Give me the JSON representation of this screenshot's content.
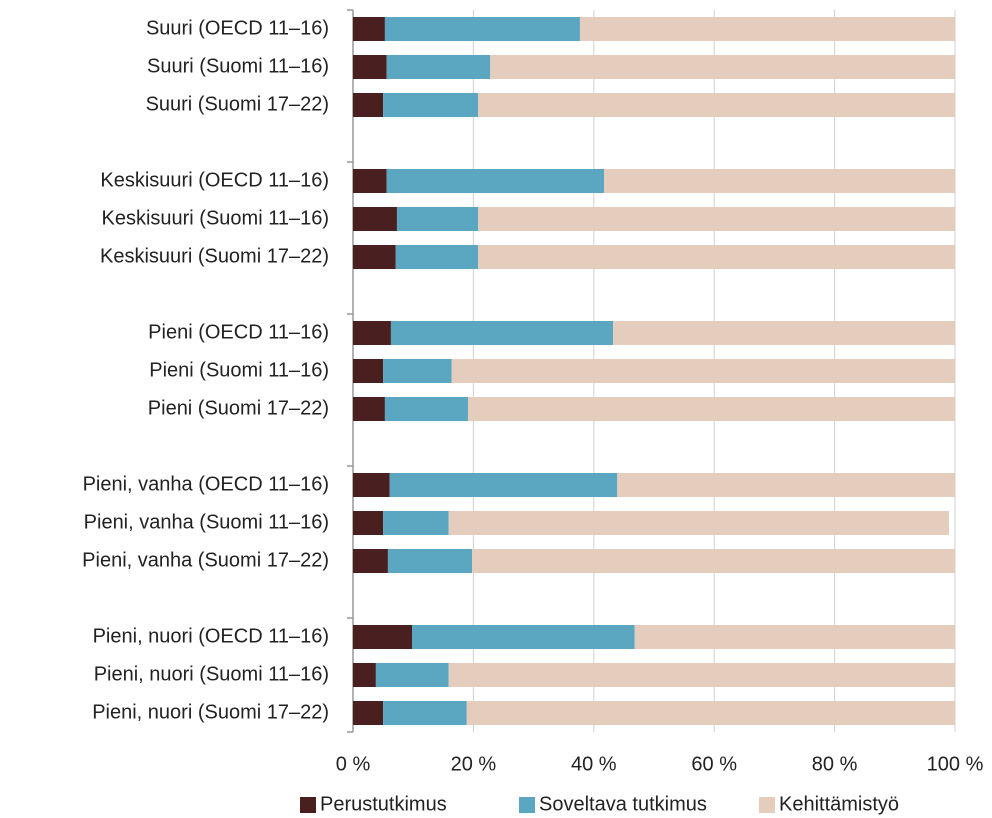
{
  "chart_data": {
    "type": "stacked-bar-horizontal",
    "categories": [
      "Suuri (OECD 11–16)",
      "Suuri (Suomi 11–16)",
      "Suuri (Suomi 17–22)",
      null,
      "Keskisuuri (OECD 11–16)",
      "Keskisuuri (Suomi 11–16)",
      "Keskisuuri (Suomi 17–22)",
      null,
      "Pieni (OECD 11–16)",
      "Pieni (Suomi 11–16)",
      "Pieni (Suomi 17–22)",
      null,
      "Pieni, vanha (OECD 11–16)",
      "Pieni, vanha (Suomi 11–16)",
      "Pieni, vanha (Suomi 17–22)",
      null,
      "Pieni, nuori (OECD 11–16)",
      "Pieni, nuori (Suomi 11–16)",
      "Pieni, nuori (Suomi 17–22)"
    ],
    "series": [
      {
        "name": "Perustutkimus",
        "color": "#4a1f1f",
        "values": [
          5.3,
          5.6,
          5.0,
          null,
          5.6,
          7.3,
          7.1,
          null,
          6.3,
          5.0,
          5.3,
          null,
          6.1,
          5.0,
          5.8,
          null,
          9.8,
          3.8,
          5.0
        ]
      },
      {
        "name": "Soveltava tutkimus",
        "color": "#5ba7c2",
        "values": [
          32.4,
          17.2,
          15.8,
          null,
          36.1,
          13.5,
          13.7,
          null,
          36.9,
          11.4,
          13.8,
          null,
          37.8,
          10.9,
          14.0,
          null,
          37.0,
          12.1,
          13.9
        ]
      },
      {
        "name": "Kehittämistyö",
        "color": "#e5cdbd",
        "values": [
          62.3,
          77.2,
          79.2,
          null,
          58.3,
          79.2,
          79.2,
          null,
          56.8,
          83.6,
          80.9,
          null,
          56.1,
          83.1,
          80.2,
          null,
          53.2,
          84.1,
          81.1
        ]
      }
    ],
    "xlim": [
      0,
      100
    ],
    "xticks": [
      {
        "value": 0,
        "label": "0 %"
      },
      {
        "value": 20,
        "label": "20 %"
      },
      {
        "value": 40,
        "label": "40 %"
      },
      {
        "value": 60,
        "label": "60 %"
      },
      {
        "value": 80,
        "label": "80 %"
      },
      {
        "value": 100,
        "label": "100 %"
      }
    ],
    "grid": true,
    "legend": "bottom"
  }
}
